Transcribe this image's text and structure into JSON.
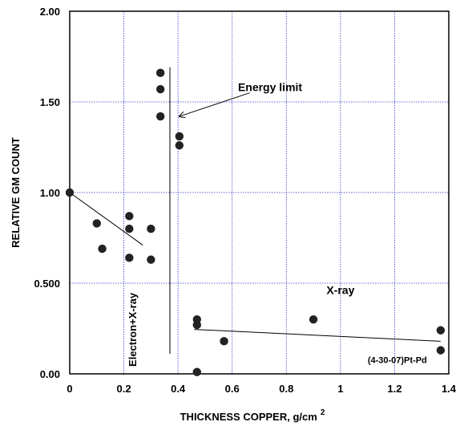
{
  "chart_data": {
    "type": "scatter",
    "xlabel": "THICKNESS COPPER, g/cm",
    "xlabel_superscript": "2",
    "ylabel": "RELATIVE GM COUNT",
    "xlim": [
      0,
      1.4
    ],
    "ylim": [
      0,
      2.0
    ],
    "x_ticks": [
      0,
      0.2,
      0.4,
      0.6,
      0.8,
      1,
      1.2,
      1.4
    ],
    "x_tick_labels": [
      "0",
      "0.2",
      "0.4",
      "0.6",
      "0.8",
      "1",
      "1.2",
      "1.4"
    ],
    "y_ticks": [
      0,
      0.5,
      1.0,
      1.5,
      2.0
    ],
    "y_tick_labels": [
      "0.00",
      "0.500",
      "1.00",
      "1.50",
      "2.00"
    ],
    "grid": true,
    "grid_color": "#3333cc",
    "marker_color": "#222222",
    "points": [
      {
        "x": 0.0,
        "y": 1.0
      },
      {
        "x": 0.1,
        "y": 0.83
      },
      {
        "x": 0.12,
        "y": 0.69
      },
      {
        "x": 0.22,
        "y": 0.87
      },
      {
        "x": 0.22,
        "y": 0.8
      },
      {
        "x": 0.22,
        "y": 0.64
      },
      {
        "x": 0.3,
        "y": 0.8
      },
      {
        "x": 0.3,
        "y": 0.63
      },
      {
        "x": 0.335,
        "y": 1.66
      },
      {
        "x": 0.335,
        "y": 1.57
      },
      {
        "x": 0.335,
        "y": 1.42
      },
      {
        "x": 0.405,
        "y": 1.31
      },
      {
        "x": 0.405,
        "y": 1.26
      },
      {
        "x": 0.47,
        "y": 0.3
      },
      {
        "x": 0.47,
        "y": 0.27
      },
      {
        "x": 0.47,
        "y": 0.01
      },
      {
        "x": 0.57,
        "y": 0.18
      },
      {
        "x": 0.9,
        "y": 0.3
      },
      {
        "x": 1.37,
        "y": 0.24
      },
      {
        "x": 1.37,
        "y": 0.13
      }
    ],
    "lines": [
      {
        "name": "electron-fit-line",
        "x": [
          0.0,
          0.27
        ],
        "y": [
          1.0,
          0.71
        ]
      },
      {
        "name": "energy-limit-line",
        "x": [
          0.37,
          0.37
        ],
        "y": [
          0.11,
          1.69
        ]
      },
      {
        "name": "xray-fit-line",
        "x": [
          0.46,
          1.37
        ],
        "y": [
          0.245,
          0.18
        ]
      }
    ],
    "annotations": [
      {
        "name": "energy-limit-label",
        "text": "Energy limit",
        "x": 0.74,
        "y": 1.56
      },
      {
        "name": "xray-label",
        "text": "X-ray",
        "x": 1.0,
        "y": 0.44
      },
      {
        "name": "electron-xray-label",
        "text": "Electron+X-ray",
        "x": 0.245,
        "y": 0.04,
        "rotate": -90
      },
      {
        "name": "sample-label",
        "text": "(4-30-07)Pt-Pd",
        "x": 1.21,
        "y": 0.06
      }
    ],
    "arrow": {
      "from": [
        0.665,
        1.55
      ],
      "to": [
        0.405,
        1.42
      ]
    }
  }
}
